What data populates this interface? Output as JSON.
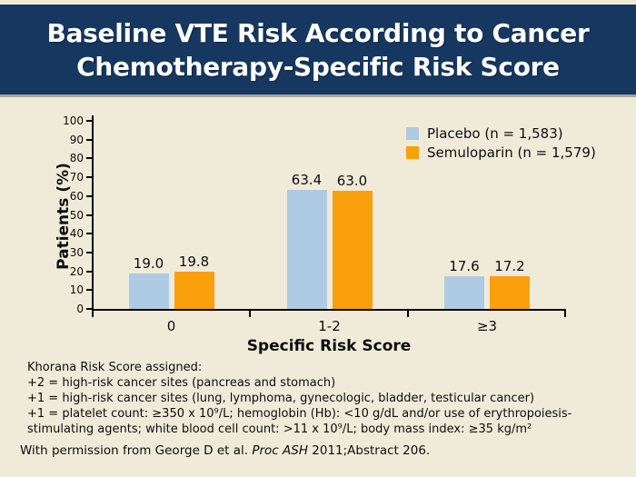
{
  "colors": {
    "navy": "#153760",
    "cream": "#f0ebd9",
    "header_divider": "#a8a69e",
    "placebo_blue": "#aecbe4",
    "semuloparin_orange": "#faa00c",
    "axis_black": "#000000",
    "title_text": "#ffffff"
  },
  "header": {
    "title_line1": "Baseline VTE Risk According to Cancer",
    "title_line2": "Chemotherapy-Specific Risk Score"
  },
  "chart_data": {
    "type": "bar",
    "categories": [
      "0",
      "1-2",
      "≥3"
    ],
    "series": [
      {
        "name": "Placebo (n = 1,583)",
        "color": "#aecbe4",
        "values": [
          19.0,
          63.4,
          17.6
        ]
      },
      {
        "name": "Semuloparin (n = 1,579)",
        "color": "#faa00c",
        "values": [
          19.8,
          63.0,
          17.2
        ]
      }
    ],
    "title": "",
    "xlabel": "Specific Risk Score",
    "ylabel": "Patients (%)",
    "ylim": [
      0,
      100
    ],
    "ytick_step": 10,
    "grid": false,
    "legend_position": "top-right",
    "value_labels": true
  },
  "footnotes": {
    "lines": [
      "Khorana Risk Score assigned:",
      "+2 = high-risk cancer sites (pancreas and stomach)",
      "+1 = high-risk cancer sites (lung, lymphoma, gynecologic, bladder, testicular cancer)",
      "+1 = platelet count: ≥350 x 10⁹/L; hemoglobin (Hb): <10 g/dL and/or use of erythropoiesis-",
      "stimulating agents; white blood cell count: >11 x 10⁹/L; body mass index: ≥35 kg/m²"
    ]
  },
  "permission": {
    "prefix": "With permission from George D et al. ",
    "italic": "Proc ASH",
    "suffix": " 2011;Abstract 206."
  }
}
